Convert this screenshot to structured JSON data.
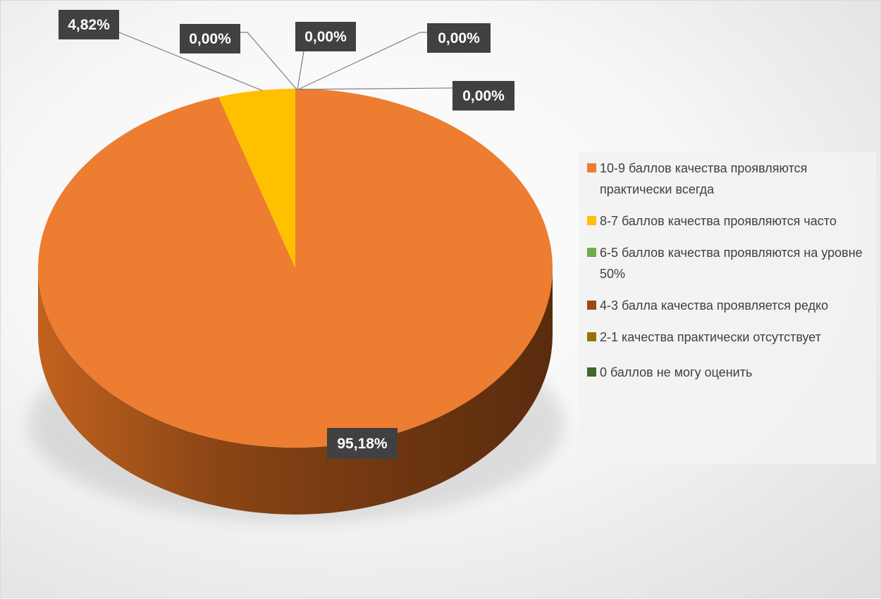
{
  "chart_data": {
    "type": "pie",
    "title": "",
    "categories": [
      "10-9 баллов качества проявляются практически всегда",
      "8-7 баллов качества проявляются часто",
      "6-5 баллов качества проявляются на уровне 50%",
      "4-3 балла качества проявляется редко",
      "2-1 качества практически отсутствует",
      "0 баллов не могу оценить"
    ],
    "values": [
      95.18,
      4.82,
      0.0,
      0.0,
      0.0,
      0.0
    ],
    "data_labels": [
      "95,18%",
      "4,82%",
      "0,00%",
      "0,00%",
      "0,00%",
      "0,00%"
    ],
    "colors": [
      "#ED7D31",
      "#FFC000",
      "#70AD47",
      "#9E480E",
      "#997300",
      "#43682B"
    ],
    "legend_position": "right",
    "style": "3d-pie"
  }
}
